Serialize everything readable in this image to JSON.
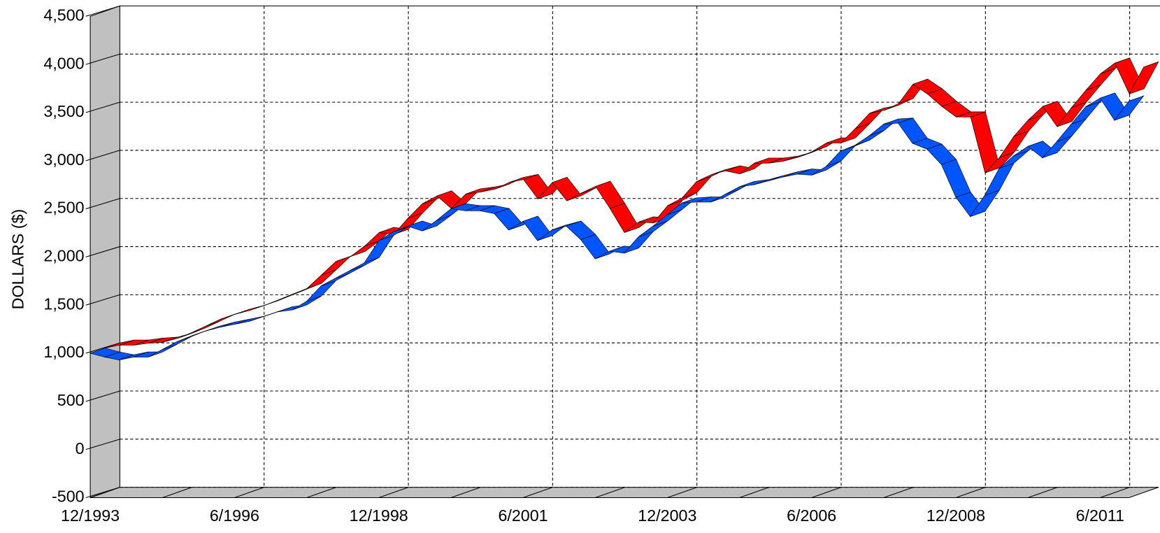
{
  "chart_data": {
    "type": "ribbon3d",
    "y_label": "DOLLARS ($)",
    "categories": [
      "12/1993",
      null,
      null,
      null,
      null,
      null,
      null,
      null,
      null,
      null,
      "6/1996",
      null,
      null,
      null,
      null,
      null,
      null,
      null,
      null,
      null,
      "12/1998",
      null,
      null,
      null,
      null,
      null,
      null,
      null,
      null,
      null,
      "6/2001",
      null,
      null,
      null,
      null,
      null,
      null,
      null,
      null,
      null,
      "12/2003",
      null,
      null,
      null,
      null,
      null,
      null,
      null,
      null,
      null,
      "6/2006",
      null,
      null,
      null,
      null,
      null,
      null,
      null,
      null,
      null,
      "12/2008",
      null,
      null,
      null,
      null,
      null,
      null,
      null,
      null,
      null,
      "6/2011",
      null,
      null
    ],
    "ylim": [
      -500,
      4500
    ],
    "yticks": [
      -500,
      0,
      500,
      {
        "value": 1000,
        "label": "1,000"
      },
      {
        "value": 1500,
        "label": "1,500"
      },
      {
        "value": 2000,
        "label": "2,000"
      },
      {
        "value": 2500,
        "label": "2,500"
      },
      {
        "value": 3000,
        "label": "3,000"
      },
      {
        "value": 3500,
        "label": "3,500"
      },
      {
        "value": 4000,
        "label": "4,000"
      },
      {
        "value": 4500,
        "label": "4,500"
      }
    ],
    "grid": true,
    "series": [
      {
        "color": "#ff0000",
        "values": [
          1000,
          1030,
          1030,
          1050,
          1060,
          1100,
          1160,
          1230,
          1300,
          1350,
          1390,
          1440,
          1500,
          1560,
          1620,
          1760,
          1900,
          1950,
          2060,
          2200,
          2180,
          2350,
          2500,
          2580,
          2450,
          2600,
          2620,
          2650,
          2720,
          2750,
          2550,
          2720,
          2530,
          2610,
          2680,
          2450,
          2200,
          2310,
          2300,
          2480,
          2560,
          2730,
          2800,
          2840,
          2810,
          2920,
          2920,
          2940,
          2980,
          3040,
          3130,
          3130,
          3280,
          3440,
          3470,
          3540,
          3740,
          3640,
          3510,
          3400,
          3400,
          2820,
          2980,
          3200,
          3370,
          3510,
          3300,
          3500,
          3680,
          3850,
          3960,
          3640,
          3920
        ]
      },
      {
        "color": "#0055ff",
        "values": [
          1000,
          960,
          930,
          960,
          960,
          1040,
          1120,
          1180,
          1230,
          1270,
          1300,
          1330,
          1380,
          1430,
          1450,
          1540,
          1700,
          1780,
          1860,
          1940,
          2170,
          2260,
          2320,
          2270,
          2380,
          2500,
          2480,
          2480,
          2450,
          2280,
          2370,
          2170,
          2280,
          2320,
          2180,
          1980,
          2060,
          2040,
          2210,
          2320,
          2440,
          2560,
          2570,
          2570,
          2650,
          2730,
          2750,
          2790,
          2830,
          2860,
          2850,
          2940,
          3100,
          3160,
          3260,
          3380,
          3390,
          3180,
          3120,
          2960,
          2620,
          2420,
          2640,
          2920,
          3050,
          3150,
          3030,
          3200,
          3380,
          3560,
          3650,
          3420,
          3620
        ]
      }
    ]
  }
}
